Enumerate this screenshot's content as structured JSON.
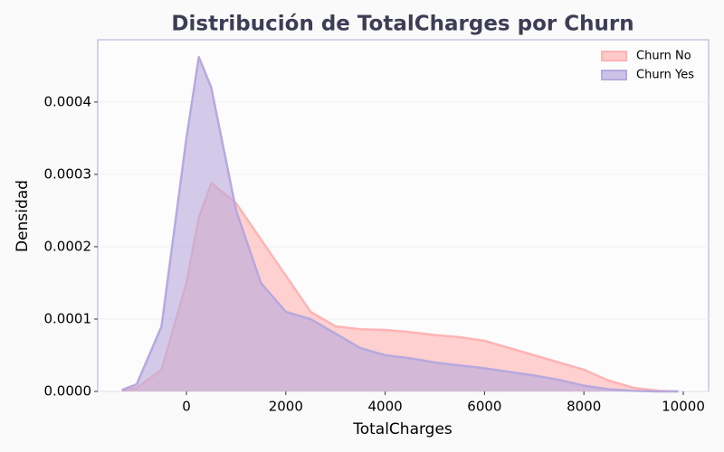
{
  "chart_data": {
    "type": "area",
    "title": "Distribución de TotalCharges por Churn",
    "x_label": "TotalCharges",
    "y_label": "Densidad",
    "x": [
      -1300,
      -1000,
      -500,
      0,
      250,
      500,
      1000,
      1500,
      2000,
      2500,
      3000,
      3500,
      4000,
      4500,
      5000,
      5500,
      6000,
      6500,
      7000,
      7500,
      8000,
      8500,
      9000,
      9500,
      9900
    ],
    "series": [
      {
        "name": "Churn No",
        "color": "#ffb3b3",
        "values": [
          1e-06,
          5e-06,
          3e-05,
          0.00015,
          0.00024,
          0.000288,
          0.00026,
          0.00021,
          0.00016,
          0.00011,
          9e-05,
          8.6e-05,
          8.5e-05,
          8.2e-05,
          7.8e-05,
          7.5e-05,
          7e-05,
          6e-05,
          5e-05,
          4e-05,
          3e-05,
          1.5e-05,
          5e-06,
          1e-06,
          0
        ]
      },
      {
        "name": "Churn Yes",
        "color": "#b7a9de",
        "values": [
          2e-06,
          1e-05,
          9e-05,
          0.00035,
          0.000462,
          0.00042,
          0.00025,
          0.00015,
          0.00011,
          0.0001,
          8e-05,
          6e-05,
          5e-05,
          4.6e-05,
          4e-05,
          3.6e-05,
          3.2e-05,
          2.7e-05,
          2.2e-05,
          1.6e-05,
          8e-06,
          3e-06,
          1e-06,
          0,
          0
        ]
      }
    ],
    "xlim": [
      -1785,
      10510
    ],
    "ylim": [
      0,
      0.000486
    ],
    "xticks": [
      0,
      2000,
      4000,
      6000,
      8000,
      10000
    ],
    "yticks": [
      {
        "value": 0,
        "label": "0.0000"
      },
      {
        "value": 0.0001,
        "label": "0.0001"
      },
      {
        "value": 0.0002,
        "label": "0.0002"
      },
      {
        "value": 0.0003,
        "label": "0.0003"
      },
      {
        "value": 0.0004,
        "label": "0.0004"
      }
    ],
    "grid": true,
    "legend": "upper right"
  }
}
